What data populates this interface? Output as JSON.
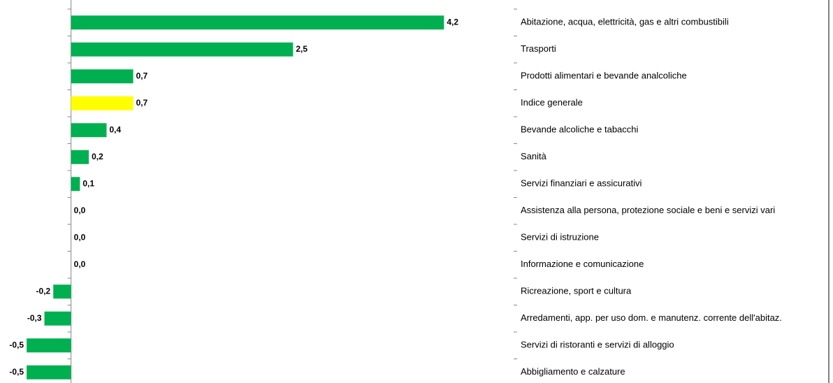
{
  "chart_data": {
    "type": "bar",
    "orientation": "horizontal",
    "categories": [
      "Abitazione, acqua, elettricità, gas e altri combustibili",
      "Trasporti",
      "Prodotti alimentari e bevande analcoliche",
      "Indice generale",
      "Bevande alcoliche e tabacchi",
      "Sanità",
      "Servizi finanziari e assicurativi",
      "Assistenza alla persona, protezione sociale e beni e servizi vari",
      "Servizi di istruzione",
      "Informazione e comunicazione",
      "Ricreazione, sport e cultura",
      "Arredamenti, app. per uso dom. e manutenz. corrente dell'abitaz.",
      "Servizi di ristoranti e servizi di alloggio",
      "Abbigliamento e calzature"
    ],
    "values": [
      4.2,
      2.5,
      0.7,
      0.7,
      0.4,
      0.2,
      0.1,
      0.0,
      0.0,
      0.0,
      -0.2,
      -0.3,
      -0.5,
      -0.5
    ],
    "value_labels": [
      "4,2",
      "2,5",
      "0,7",
      "0,7",
      "0,4",
      "0,2",
      "0,1",
      "0,0",
      "0,0",
      "0,0",
      "-0,2",
      "-0,3",
      "-0,5",
      "-0,5"
    ],
    "colors": [
      "#00b050",
      "#00b050",
      "#00b050",
      "#ffff00",
      "#00b050",
      "#00b050",
      "#00b050",
      "#00b050",
      "#00b050",
      "#00b050",
      "#00b050",
      "#00b050",
      "#00b050",
      "#00b050"
    ],
    "xlim": [
      -0.8,
      5.0
    ]
  }
}
